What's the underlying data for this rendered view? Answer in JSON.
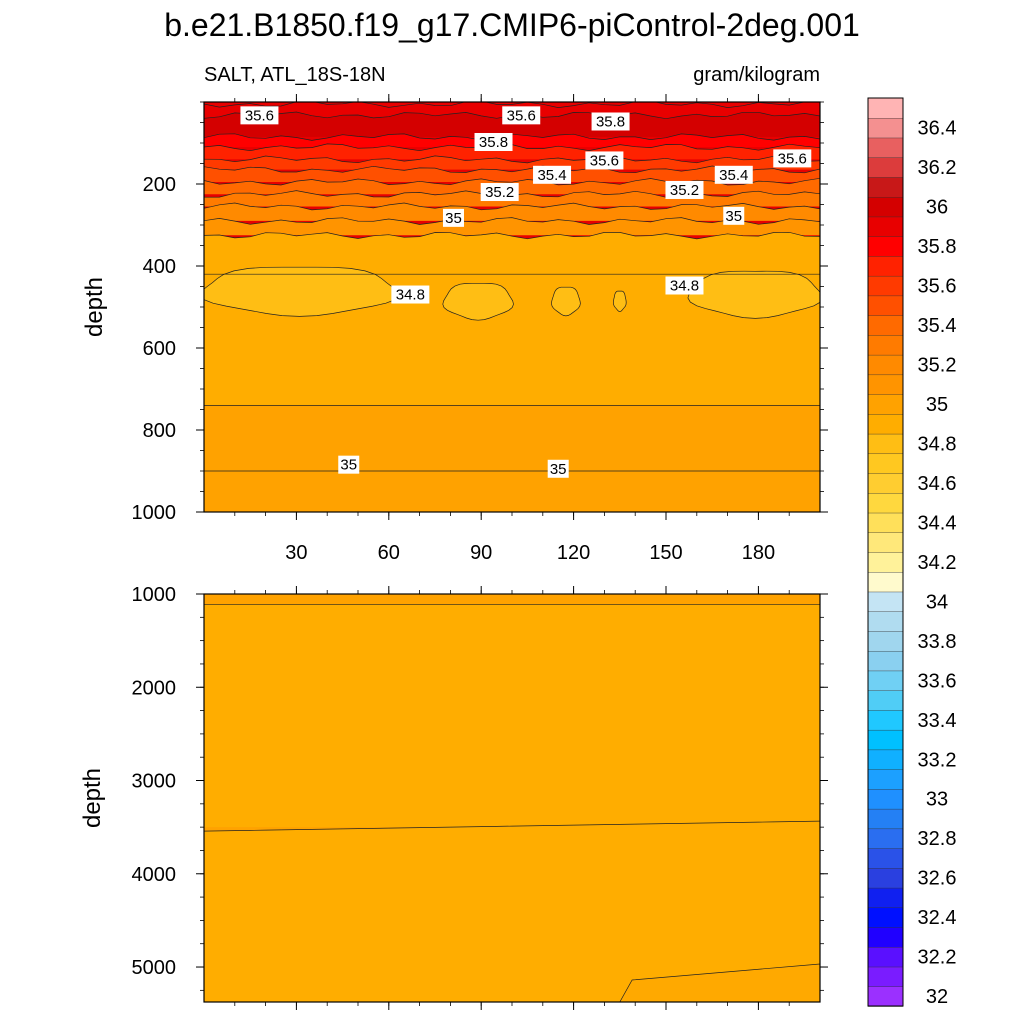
{
  "title": "b.e21.B1850.f19_g17.CMIP6-piControl-2deg.001",
  "chart_data": {
    "type": "heatmap",
    "variable": "SALT, ATL_18S-18N",
    "units": "gram/kilogram",
    "xlim": [
      0,
      200
    ],
    "x_ticks": [
      "30",
      "60",
      "90",
      "120",
      "150",
      "180"
    ],
    "x_tick_values": [
      30,
      60,
      90,
      120,
      150,
      180
    ],
    "colorbar": {
      "levels": [
        32,
        32.1,
        32.2,
        32.3,
        32.4,
        32.5,
        32.6,
        32.7,
        32.8,
        32.9,
        33,
        33.1,
        33.2,
        33.3,
        33.4,
        33.5,
        33.6,
        33.7,
        33.8,
        33.9,
        34,
        34.1,
        34.2,
        34.3,
        34.4,
        34.5,
        34.6,
        34.7,
        34.8,
        34.9,
        35,
        35.1,
        35.2,
        35.3,
        35.4,
        35.5,
        35.6,
        35.7,
        35.8,
        35.9,
        36,
        36.1,
        36.2,
        36.3,
        36.4,
        36.5
      ],
      "labels": [
        "32",
        "32.2",
        "32.4",
        "32.6",
        "32.8",
        "33",
        "33.2",
        "33.4",
        "33.6",
        "33.8",
        "34",
        "34.2",
        "34.4",
        "34.6",
        "34.8",
        "35",
        "35.2",
        "35.4",
        "35.6",
        "35.8",
        "36",
        "36.2",
        "36.4"
      ],
      "label_values": [
        32,
        32.2,
        32.4,
        32.6,
        32.8,
        33,
        33.2,
        33.4,
        33.6,
        33.8,
        34,
        34.2,
        34.4,
        34.6,
        34.8,
        35,
        35.2,
        35.4,
        35.6,
        35.8,
        36,
        36.2,
        36.4
      ],
      "colors": [
        "#9b30ff",
        "#7a1cff",
        "#5a10ff",
        "#2000ff",
        "#0010ff",
        "#1020f0",
        "#2a40e0",
        "#2a52e8",
        "#2a6ef0",
        "#2480f4",
        "#1f90ff",
        "#1ca0ff",
        "#10b0ff",
        "#00c0ff",
        "#20c8ff",
        "#50cdf6",
        "#70d0f4",
        "#8ad0f0",
        "#a0d6ee",
        "#b0dcf0",
        "#c4e4f4",
        "#fffacd",
        "#fff29a",
        "#ffe87a",
        "#ffe05a",
        "#ffd83e",
        "#ffcd30",
        "#ffc820",
        "#ffbe14",
        "#ffad00",
        "#ffa200",
        "#ff9400",
        "#ff8a00",
        "#ff7b00",
        "#ff6a00",
        "#ff5000",
        "#ff3a00",
        "#ff2200",
        "#ff0000",
        "#e80000",
        "#d40000",
        "#c81818",
        "#dc3c3c",
        "#e86060",
        "#f49090",
        "#ffb4b4"
      ]
    },
    "panels": [
      {
        "name": "upper",
        "ylabel": "depth",
        "ylim": [
          1000,
          0
        ],
        "y_ticks": [
          "200",
          "400",
          "600",
          "800",
          "1000"
        ],
        "y_tick_values": [
          200,
          400,
          600,
          800,
          1000
        ],
        "bands": [
          {
            "top": 5,
            "bottom": 32,
            "value": 35.9
          },
          {
            "top": 32,
            "bottom": 85,
            "value": 36.0
          },
          {
            "top": 85,
            "bottom": 110,
            "value": 35.8
          },
          {
            "top": 110,
            "bottom": 140,
            "value": 35.7
          },
          {
            "top": 140,
            "bottom": 165,
            "value": 35.6
          },
          {
            "top": 165,
            "bottom": 195,
            "value": 35.5
          },
          {
            "top": 195,
            "bottom": 225,
            "value": 35.4
          },
          {
            "top": 225,
            "bottom": 255,
            "value": 35.3
          },
          {
            "top": 255,
            "bottom": 290,
            "value": 35.2
          },
          {
            "top": 290,
            "bottom": 325,
            "value": 35.1
          },
          {
            "top": 325,
            "bottom": 420,
            "value": 34.9
          },
          {
            "top": 420,
            "bottom": 740,
            "value": 34.9
          },
          {
            "top": 740,
            "bottom": 900,
            "value": 35.0
          },
          {
            "top": 900,
            "bottom": 1000,
            "value": 35.05
          }
        ],
        "lobes": [
          {
            "x_from": 0,
            "x_to": 62,
            "top": 400,
            "bottom": 520,
            "value": 34.8
          },
          {
            "x_from": 78,
            "x_to": 100,
            "top": 440,
            "bottom": 530,
            "value": 34.8
          },
          {
            "x_from": 113,
            "x_to": 122,
            "top": 450,
            "bottom": 520,
            "value": 34.8
          },
          {
            "x_from": 133,
            "x_to": 137,
            "top": 460,
            "bottom": 510,
            "value": 34.8
          },
          {
            "x_from": 158,
            "x_to": 200,
            "top": 410,
            "bottom": 525,
            "value": 34.8
          }
        ],
        "contour_labels": [
          {
            "text": "35.6",
            "x": 18,
            "y": 35
          },
          {
            "text": "35.6",
            "x": 103,
            "y": 35
          },
          {
            "text": "35.8",
            "x": 132,
            "y": 50
          },
          {
            "text": "35.8",
            "x": 94,
            "y": 100
          },
          {
            "text": "35.6",
            "x": 130,
            "y": 145
          },
          {
            "text": "35.4",
            "x": 113,
            "y": 180
          },
          {
            "text": "35.6",
            "x": 191,
            "y": 140
          },
          {
            "text": "35.4",
            "x": 172,
            "y": 180
          },
          {
            "text": "35.2",
            "x": 96,
            "y": 222
          },
          {
            "text": "35.2",
            "x": 156,
            "y": 217
          },
          {
            "text": "35",
            "x": 81,
            "y": 285
          },
          {
            "text": "35",
            "x": 172,
            "y": 280
          },
          {
            "text": "34.8",
            "x": 67,
            "y": 472
          },
          {
            "text": "34.8",
            "x": 156,
            "y": 450
          },
          {
            "text": "35",
            "x": 47,
            "y": 887
          },
          {
            "text": "35",
            "x": 115,
            "y": 897
          }
        ]
      },
      {
        "name": "lower",
        "ylabel": "depth",
        "ylim": [
          1000,
          5375
        ],
        "y_ticks": [
          "1000",
          "2000",
          "3000",
          "4000",
          "5000"
        ],
        "y_tick_values": [
          1000,
          2000,
          3000,
          4000,
          5000
        ],
        "bands": [
          {
            "top": 1000,
            "bottom": 1110,
            "value": 35.05
          },
          {
            "top": 1110,
            "bottom": 3500,
            "value": 34.95
          },
          {
            "top": 3500,
            "bottom": 5375,
            "value": 34.92
          }
        ]
      }
    ]
  }
}
